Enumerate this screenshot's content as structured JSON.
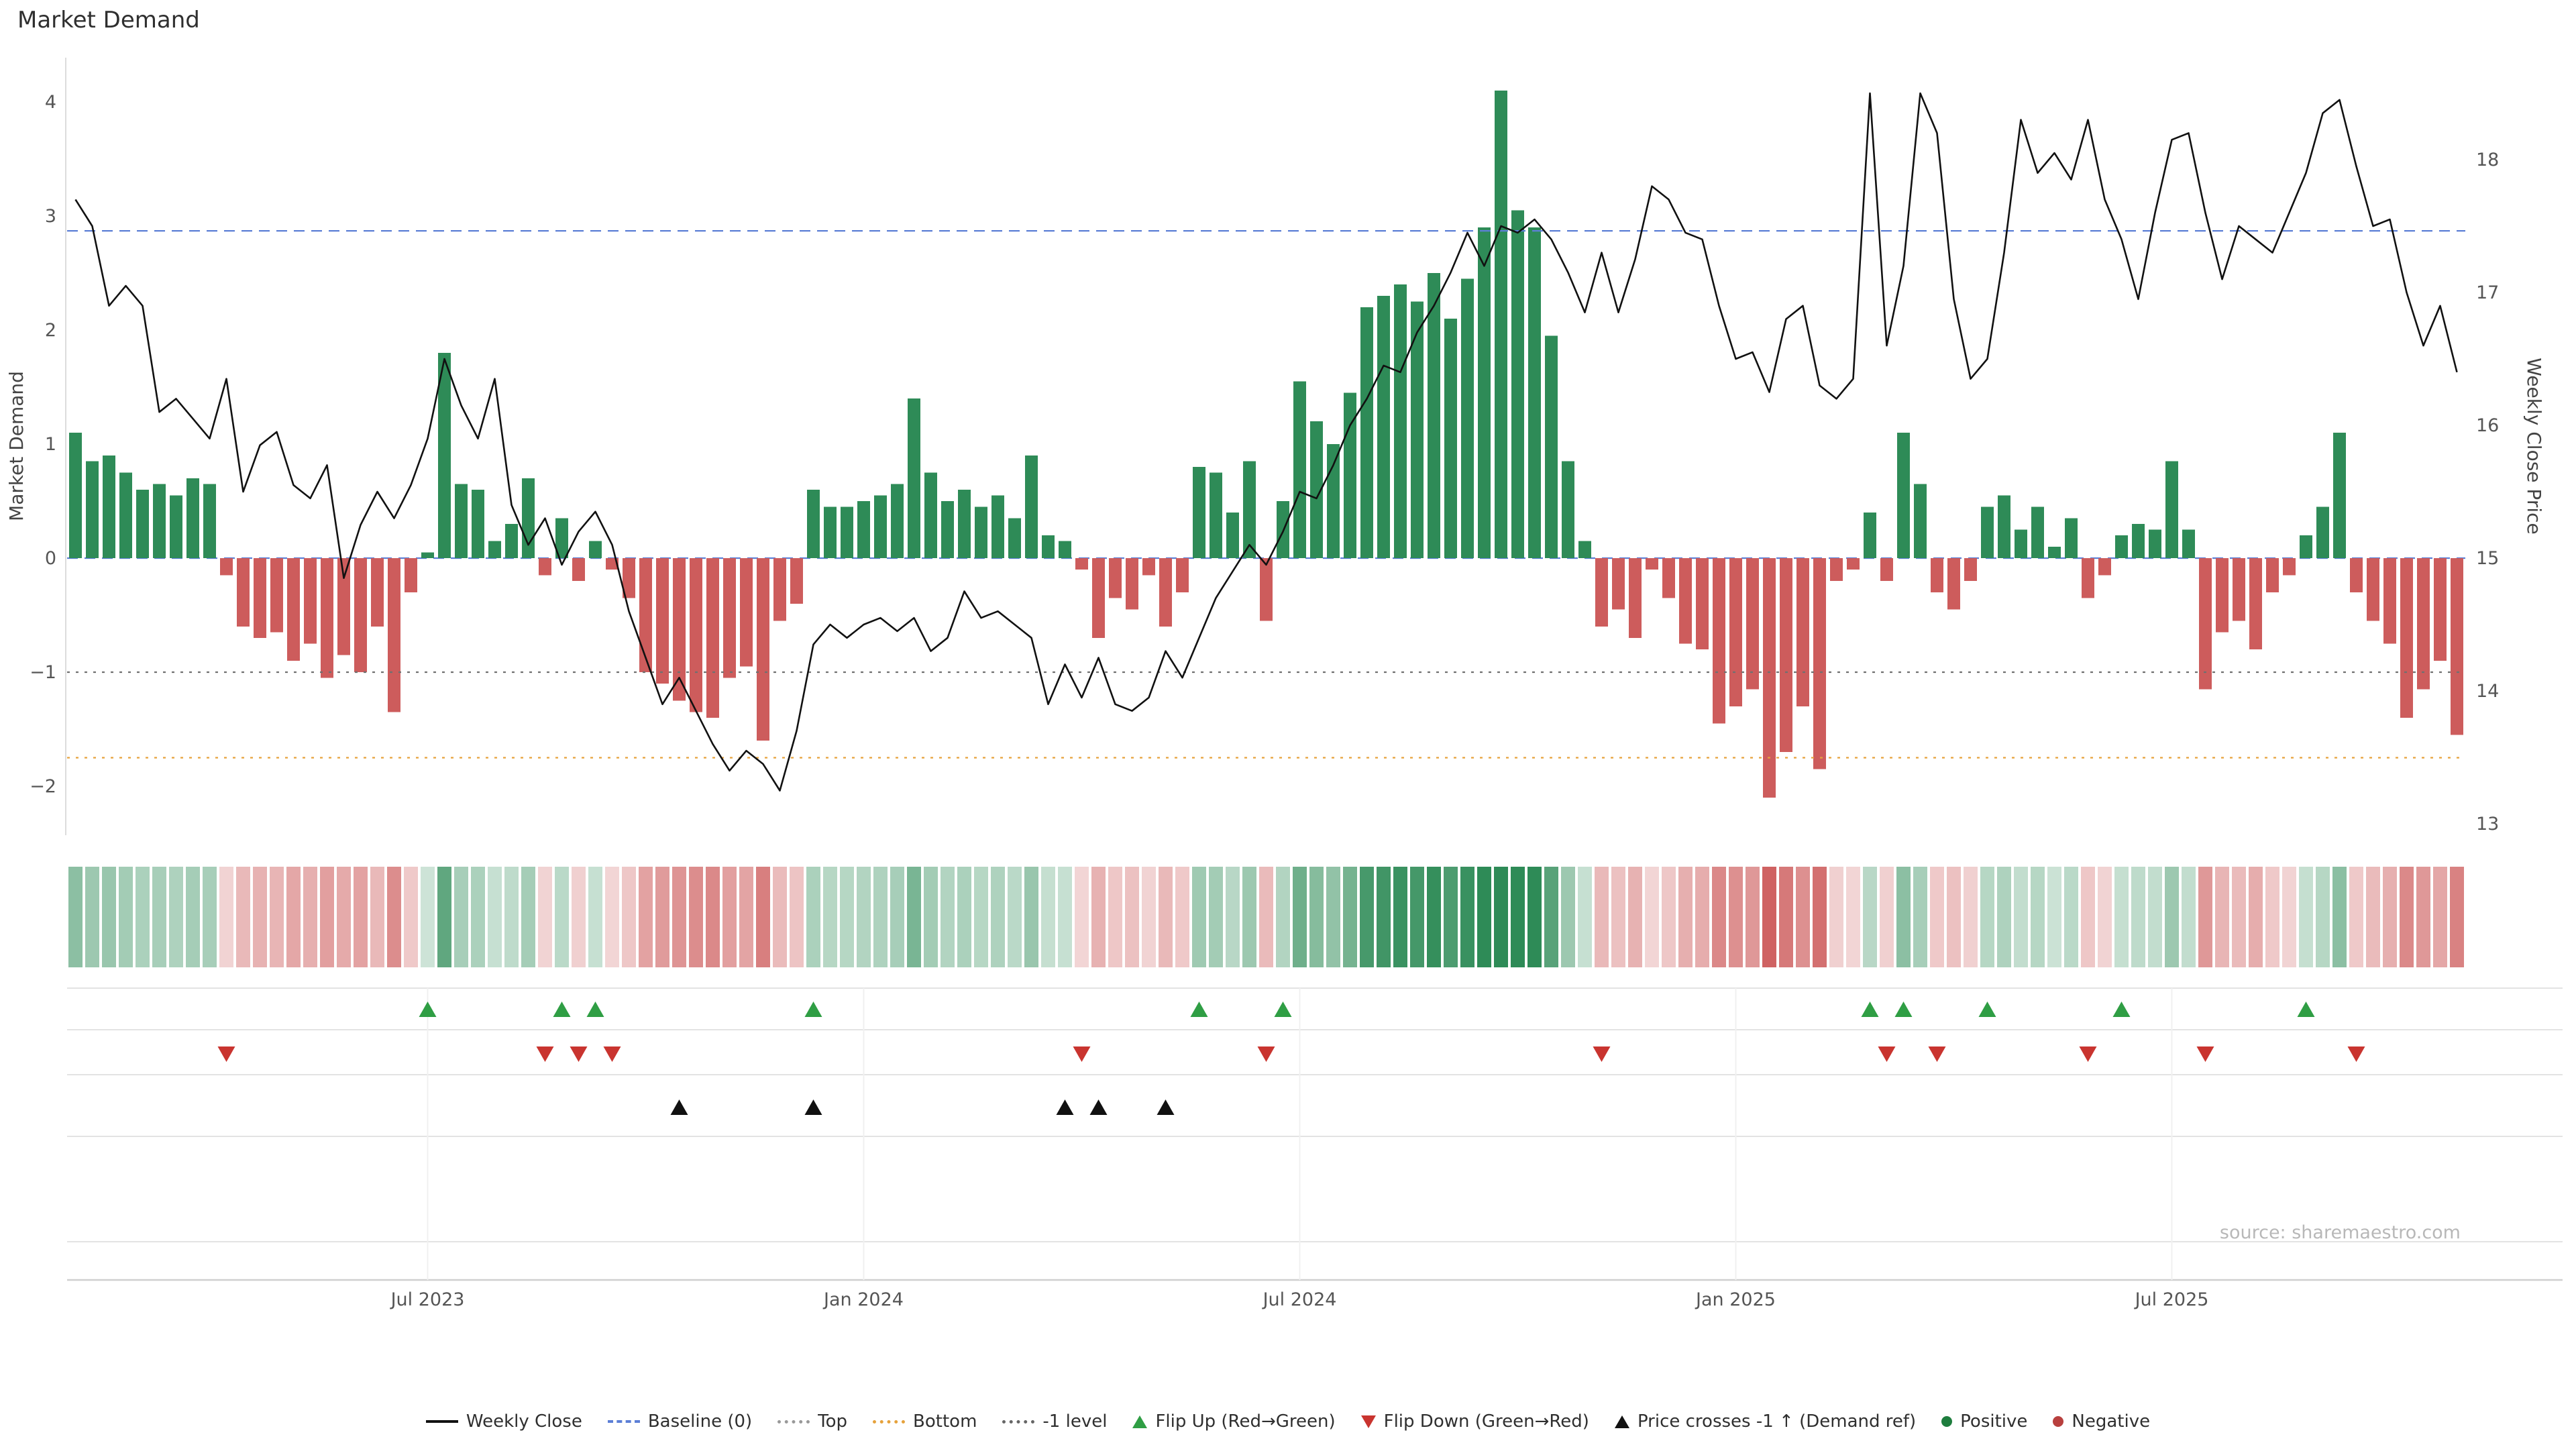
{
  "title": "Market Demand",
  "source": "source: sharemaestro.com",
  "colors": {
    "positive_bar": "#2e8b57",
    "negative_bar": "#cd5c5c",
    "price_line": "#111111",
    "flip_up": "#2f9e44",
    "flip_down": "#c9342f",
    "price_cross": "#111111",
    "lane_line": "#e3e3e3",
    "axis_line": "#cfcfcf"
  },
  "chart_data": {
    "type": "bar+line",
    "x_unit": "week",
    "n_points": 143,
    "left_axis": {
      "label": "Market Demand",
      "ticks": [
        4,
        3,
        2,
        1,
        0,
        -1,
        -2
      ],
      "range": [
        -2.45,
        4.4
      ]
    },
    "right_axis": {
      "label": "Weekly Close Price",
      "ticks": [
        18,
        17,
        16,
        15,
        14,
        13
      ],
      "range": [
        12.95,
        18.75
      ]
    },
    "x_ticks": [
      {
        "label": "Jul 2023",
        "week": 21
      },
      {
        "label": "Jan 2024",
        "week": 47
      },
      {
        "label": "Jul 2024",
        "week": 73
      },
      {
        "label": "Jan 2025",
        "week": 99
      },
      {
        "label": "Jul 2025",
        "week": 125
      }
    ],
    "series": [
      {
        "name": "Market Demand",
        "type": "bar",
        "axis": "left",
        "values": [
          1.1,
          0.85,
          0.9,
          0.75,
          0.6,
          0.65,
          0.55,
          0.7,
          0.65,
          -0.15,
          -0.6,
          -0.7,
          -0.65,
          -0.9,
          -0.75,
          -1.05,
          -0.85,
          -1.0,
          -0.6,
          -1.35,
          -0.3,
          0.05,
          1.8,
          0.65,
          0.6,
          0.15,
          0.3,
          0.7,
          -0.15,
          0.35,
          -0.2,
          0.15,
          -0.1,
          -0.35,
          -1.0,
          -1.1,
          -1.25,
          -1.35,
          -1.4,
          -1.05,
          -0.95,
          -1.6,
          -0.55,
          -0.4,
          0.6,
          0.45,
          0.45,
          0.5,
          0.55,
          0.65,
          1.4,
          0.75,
          0.5,
          0.6,
          0.45,
          0.55,
          0.35,
          0.9,
          0.2,
          0.15,
          -0.1,
          -0.7,
          -0.35,
          -0.45,
          -0.15,
          -0.6,
          -0.3,
          0.8,
          0.75,
          0.4,
          0.85,
          -0.55,
          0.5,
          1.55,
          1.2,
          1.0,
          1.45,
          2.2,
          2.3,
          2.4,
          2.25,
          2.5,
          2.1,
          2.45,
          2.9,
          4.1,
          3.05,
          2.9,
          1.95,
          0.85,
          0.15,
          -0.6,
          -0.45,
          -0.7,
          -0.1,
          -0.35,
          -0.75,
          -0.8,
          -1.45,
          -1.3,
          -1.15,
          -2.1,
          -1.7,
          -1.3,
          -1.85,
          -0.2,
          -0.1,
          0.4,
          -0.2,
          1.1,
          0.65,
          -0.3,
          -0.45,
          -0.2,
          0.45,
          0.55,
          0.25,
          0.45,
          0.1,
          0.35,
          -0.35,
          -0.15,
          0.2,
          0.3,
          0.25,
          0.85,
          0.25,
          -1.15,
          -0.65,
          -0.55,
          -0.8,
          -0.3,
          -0.15,
          0.2,
          0.45,
          1.1,
          -0.3,
          -0.55,
          -0.75,
          -1.4,
          -1.15,
          -0.9,
          -1.55
        ]
      },
      {
        "name": "Weekly Close",
        "type": "line",
        "axis": "right",
        "values": [
          17.7,
          17.5,
          16.9,
          17.05,
          16.9,
          16.1,
          16.2,
          16.05,
          15.9,
          16.35,
          15.5,
          15.85,
          15.95,
          15.55,
          15.45,
          15.7,
          14.85,
          15.25,
          15.5,
          15.3,
          15.55,
          15.9,
          16.5,
          16.15,
          15.9,
          16.35,
          15.4,
          15.1,
          15.3,
          14.95,
          15.2,
          15.35,
          15.1,
          14.6,
          14.25,
          13.9,
          14.1,
          13.85,
          13.6,
          13.4,
          13.55,
          13.45,
          13.25,
          13.7,
          14.35,
          14.5,
          14.4,
          14.5,
          14.55,
          14.45,
          14.55,
          14.3,
          14.4,
          14.75,
          14.55,
          14.6,
          14.5,
          14.4,
          13.9,
          14.2,
          13.95,
          14.25,
          13.9,
          13.85,
          13.95,
          14.3,
          14.1,
          14.4,
          14.7,
          14.9,
          15.1,
          14.95,
          15.2,
          15.5,
          15.45,
          15.7,
          16.0,
          16.2,
          16.45,
          16.4,
          16.7,
          16.9,
          17.15,
          17.45,
          17.2,
          17.5,
          17.45,
          17.55,
          17.4,
          17.15,
          16.85,
          17.3,
          16.85,
          17.25,
          17.8,
          17.7,
          17.45,
          17.4,
          16.9,
          16.5,
          16.55,
          16.25,
          16.8,
          16.9,
          16.3,
          16.2,
          16.35,
          18.5,
          16.6,
          17.2,
          18.5,
          18.2,
          16.95,
          16.35,
          16.5,
          17.3,
          18.3,
          17.9,
          18.05,
          17.85,
          18.3,
          17.7,
          17.4,
          16.95,
          17.6,
          18.15,
          18.2,
          17.6,
          17.1,
          17.5,
          17.4,
          17.3,
          17.6,
          17.9,
          18.35,
          18.45,
          17.95,
          17.5,
          17.55,
          17.0,
          16.6,
          16.9,
          16.4
        ]
      }
    ],
    "reference_lines": [
      {
        "name": "Baseline (0)",
        "value": 0,
        "style": "dashed",
        "color": "#5c7fd6"
      },
      {
        "name": "Top",
        "value": 2.87,
        "style": "dashed",
        "color": "#5c7fd6"
      },
      {
        "name": "Bottom",
        "value": -1.75,
        "style": "dotted",
        "color": "#e6a23c"
      },
      {
        "name": "-1 level",
        "value": -1,
        "style": "dotted",
        "color": "#707070"
      }
    ],
    "markers": {
      "flip_up_weeks": [
        21,
        29,
        31,
        44,
        67,
        72,
        107,
        109,
        114,
        122,
        133
      ],
      "flip_down_weeks": [
        9,
        28,
        30,
        32,
        60,
        71,
        91,
        108,
        111,
        120,
        127,
        136
      ],
      "price_cross_minus1_weeks": [
        36,
        44,
        59,
        61,
        65
      ]
    },
    "heatmap": {
      "source_series": "Market Demand",
      "rows": 1
    }
  },
  "legend": {
    "items": [
      {
        "label": "Weekly Close",
        "swatch": "line",
        "color": "#111111"
      },
      {
        "label": "Baseline (0)",
        "swatch": "dashed-line",
        "color": "#5c7fd6"
      },
      {
        "label": "Top",
        "swatch": "dotted-line",
        "color": "#999999"
      },
      {
        "label": "Bottom",
        "swatch": "dotted-line",
        "color": "#e6a23c"
      },
      {
        "label": "-1 level",
        "swatch": "dotted-line",
        "color": "#666666"
      },
      {
        "label": "Flip Up (Red→Green)",
        "swatch": "triangle-up",
        "color": "#2f9e44"
      },
      {
        "label": "Flip Down (Green→Red)",
        "swatch": "triangle-down",
        "color": "#c9342f"
      },
      {
        "label": "Price crosses -1 ↑ (Demand ref)",
        "swatch": "triangle-up",
        "color": "#111111"
      },
      {
        "label": "Positive",
        "swatch": "dot",
        "color": "#1e7d3e"
      },
      {
        "label": "Negative",
        "swatch": "dot",
        "color": "#b8403e"
      }
    ]
  }
}
